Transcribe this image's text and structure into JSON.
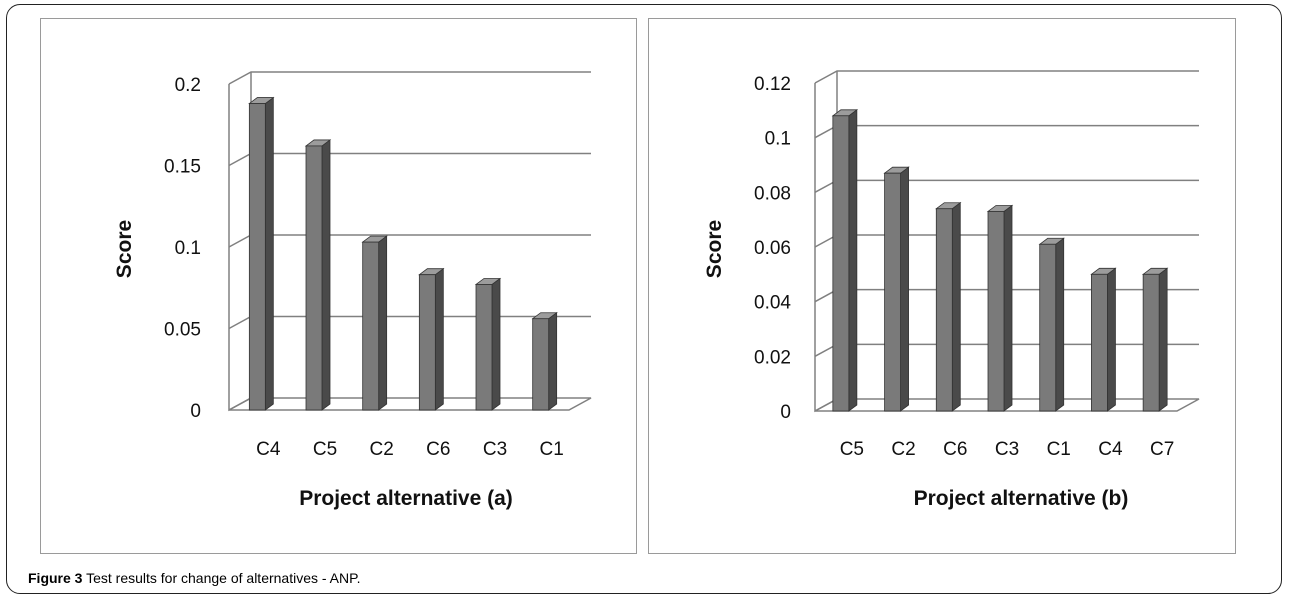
{
  "caption": {
    "figure_label": "Figure 3",
    "text": " Test results for change of alternatives - ANP."
  },
  "colors": {
    "bar_front": "#7a7a7a",
    "bar_side": "#4a4a4a",
    "bar_top": "#9c9c9c",
    "grid": "#808080"
  },
  "chart_data": [
    {
      "type": "bar",
      "categories": [
        "C4",
        "C5",
        "C2",
        "C6",
        "C3",
        "C1"
      ],
      "values": [
        0.188,
        0.162,
        0.103,
        0.083,
        0.077,
        0.056
      ],
      "yticks": [
        "0",
        "0.05",
        "0.1",
        "0.15",
        "0.2"
      ],
      "ylim": [
        0,
        0.2
      ],
      "xlabel": "Project alternative (a)",
      "ylabel": "Score",
      "grid": true,
      "style": "3d-column"
    },
    {
      "type": "bar",
      "categories": [
        "C5",
        "C2",
        "C6",
        "C3",
        "C1",
        "C4",
        "C7"
      ],
      "values": [
        0.108,
        0.087,
        0.074,
        0.073,
        0.061,
        0.05,
        0.05
      ],
      "yticks": [
        "0",
        "0.02",
        "0.04",
        "0.06",
        "0.08",
        "0.1",
        "0.12"
      ],
      "ylim": [
        0,
        0.12
      ],
      "xlabel": "Project alternative (b)",
      "ylabel": "Score",
      "grid": true,
      "style": "3d-column"
    }
  ]
}
